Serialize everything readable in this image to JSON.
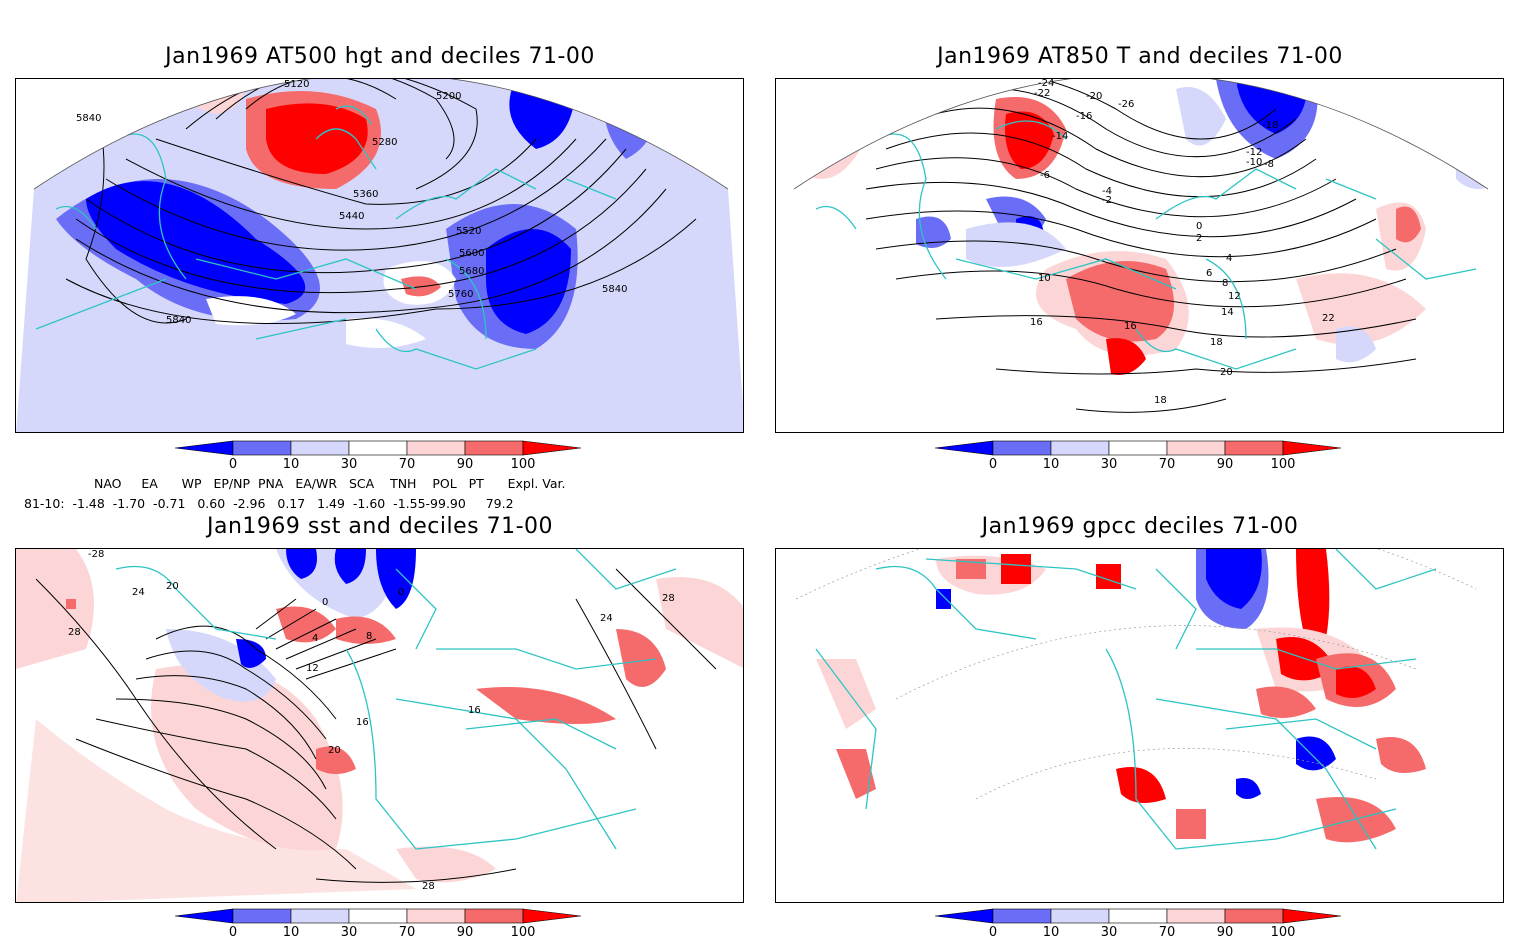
{
  "panels": [
    {
      "title": "Jan1969 AT500 hgt and deciles 71-00",
      "contour_labels": [
        "5120",
        "5200",
        "5280",
        "5360",
        "5440",
        "5520",
        "5600",
        "5680",
        "5760",
        "5840",
        "5840",
        "5840"
      ]
    },
    {
      "title": "Jan1969 AT850 T and deciles 71-00",
      "contour_labels": [
        "-24",
        "-22",
        "-20",
        "-18",
        "-16",
        "-14",
        "-12",
        "-10",
        "-8",
        "-6",
        "-4",
        "-2",
        "0",
        "2",
        "4",
        "6",
        "8",
        "10",
        "12",
        "14",
        "16",
        "18",
        "20",
        "22",
        "-26",
        "16",
        "18"
      ]
    },
    {
      "title": "Jan1969 sst and deciles 71-00",
      "contour_labels": [
        "-28",
        "24",
        "20",
        "28",
        "0",
        "0",
        "4",
        "8",
        "12",
        "16",
        "16",
        "20",
        "24",
        "28",
        "28"
      ]
    },
    {
      "title": "Jan1969 gpcc deciles 71-00",
      "contour_labels": []
    }
  ],
  "colorbar": {
    "ticks": [
      "0",
      "10",
      "30",
      "70",
      "90",
      "100"
    ],
    "colors": [
      "#0000ff",
      "#6a6ef6",
      "#d6d8fb",
      "#ffffff",
      "#fcd6d6",
      "#f56a6a",
      "#ff0000"
    ]
  },
  "indices": {
    "header": "NAO     EA      WP   EP/NP  PNA   EA/WR   SCA    TNH    POL   PT      Expl. Var.",
    "row": "81-10:  -1.48  -1.70  -0.71   0.60  -2.96   0.17   1.49  -1.60  -1.55-99.90     79.2"
  },
  "colors": {
    "coast": "#2ec4c4",
    "contour": "#000000",
    "frame": "#000000"
  }
}
